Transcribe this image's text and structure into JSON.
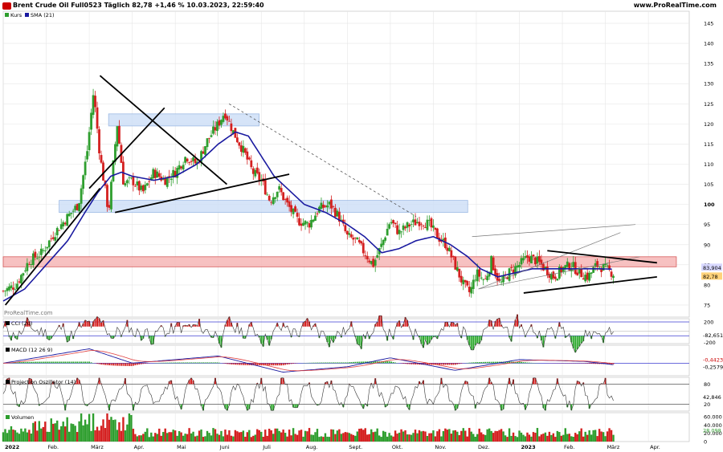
{
  "header": {
    "title": "Brent Crude Oil Full0523 Täglich 82,78 +1,46 % 10.03.2023, 22:59:40",
    "brand": "www.ProRealTime.com"
  },
  "colors": {
    "candle_up": "#2e9e2e",
    "candle_down": "#d42020",
    "sma": "#1a1aa0",
    "resistance_zone": "#f6b7b7",
    "support_zone": "#cfe0f7",
    "grid": "#e6e6e6",
    "osc_pos": "#2eaa2e",
    "osc_neg": "#d42020",
    "ref_line": "#3c3cd0"
  },
  "chart_data": [
    {
      "type": "candlestick",
      "title": "Brent Crude Oil Full0523 Täglich",
      "legend": [
        {
          "name": "Kurs",
          "color": "#2e9e2e"
        },
        {
          "name": "SMA (21)",
          "color": "#1a1aa0"
        }
      ],
      "ylim": [
        72,
        148
      ],
      "y_ticks": [
        75,
        80,
        85,
        90,
        95,
        100,
        105,
        110,
        115,
        120,
        125,
        130,
        135,
        140,
        145
      ],
      "last_price": "82,78",
      "sma_value": "83,904",
      "x_tick_labels": [
        "2022",
        "Feb.",
        "März",
        "Apr.",
        "Mai",
        "Juni",
        "Juli",
        "Aug.",
        "Sept.",
        "Okt.",
        "Nov.",
        "Dez.",
        "2023",
        "Feb.",
        "März",
        "Apr."
      ],
      "x_tick_months": [
        0,
        1,
        2,
        3,
        4,
        5,
        6,
        7,
        8,
        9,
        10,
        11,
        12,
        13,
        14,
        15
      ],
      "x_range_months": [
        0,
        15.95
      ],
      "close_keypoints": [
        [
          0.0,
          78.5
        ],
        [
          0.3,
          80
        ],
        [
          0.6,
          86
        ],
        [
          0.9,
          88
        ],
        [
          1.2,
          93
        ],
        [
          1.5,
          97
        ],
        [
          1.75,
          100
        ],
        [
          1.95,
          113
        ],
        [
          2.1,
          128
        ],
        [
          2.25,
          112
        ],
        [
          2.45,
          98
        ],
        [
          2.65,
          120
        ],
        [
          2.8,
          105
        ],
        [
          3.0,
          106
        ],
        [
          3.25,
          103
        ],
        [
          3.5,
          108
        ],
        [
          3.75,
          106
        ],
        [
          4.0,
          108
        ],
        [
          4.25,
          112
        ],
        [
          4.5,
          110
        ],
        [
          4.75,
          116
        ],
        [
          5.0,
          120
        ],
        [
          5.15,
          123
        ],
        [
          5.35,
          118
        ],
        [
          5.6,
          113
        ],
        [
          5.8,
          108
        ],
        [
          6.0,
          106
        ],
        [
          6.2,
          101
        ],
        [
          6.4,
          104
        ],
        [
          6.6,
          100
        ],
        [
          6.85,
          96
        ],
        [
          7.1,
          95
        ],
        [
          7.35,
          99
        ],
        [
          7.6,
          100
        ],
        [
          7.8,
          97
        ],
        [
          8.0,
          92
        ],
        [
          8.2,
          91
        ],
        [
          8.4,
          88
        ],
        [
          8.6,
          85
        ],
        [
          8.8,
          90
        ],
        [
          9.0,
          96
        ],
        [
          9.2,
          93
        ],
        [
          9.45,
          95
        ],
        [
          9.7,
          96
        ],
        [
          9.9,
          95
        ],
        [
          10.1,
          92
        ],
        [
          10.3,
          90
        ],
        [
          10.5,
          85
        ],
        [
          10.7,
          80
        ],
        [
          10.85,
          78
        ],
        [
          11.0,
          83
        ],
        [
          11.2,
          81
        ],
        [
          11.35,
          86
        ],
        [
          11.55,
          80
        ],
        [
          11.75,
          83
        ],
        [
          12.0,
          85
        ],
        [
          12.2,
          87
        ],
        [
          12.4,
          86
        ],
        [
          12.6,
          84
        ],
        [
          12.8,
          82
        ],
        [
          13.0,
          84
        ],
        [
          13.2,
          85
        ],
        [
          13.4,
          83
        ],
        [
          13.6,
          82
        ],
        [
          13.8,
          85
        ],
        [
          14.0,
          84
        ],
        [
          14.2,
          82.78
        ]
      ],
      "sma_keypoints": [
        [
          0.0,
          76
        ],
        [
          0.5,
          79
        ],
        [
          1.0,
          85
        ],
        [
          1.5,
          91
        ],
        [
          1.9,
          98
        ],
        [
          2.2,
          103
        ],
        [
          2.5,
          107
        ],
        [
          2.75,
          108
        ],
        [
          3.0,
          107
        ],
        [
          3.5,
          106
        ],
        [
          4.0,
          107
        ],
        [
          4.5,
          110
        ],
        [
          5.0,
          115
        ],
        [
          5.4,
          118
        ],
        [
          5.7,
          117
        ],
        [
          6.0,
          112
        ],
        [
          6.3,
          107
        ],
        [
          6.7,
          103
        ],
        [
          7.0,
          100
        ],
        [
          7.5,
          98
        ],
        [
          8.0,
          95
        ],
        [
          8.4,
          92
        ],
        [
          8.8,
          88
        ],
        [
          9.2,
          89
        ],
        [
          9.6,
          91
        ],
        [
          10.0,
          92
        ],
        [
          10.4,
          90
        ],
        [
          10.8,
          87
        ],
        [
          11.1,
          84
        ],
        [
          11.5,
          82
        ],
        [
          11.9,
          83
        ],
        [
          12.3,
          84
        ],
        [
          12.7,
          84
        ],
        [
          13.1,
          84
        ],
        [
          13.5,
          84
        ],
        [
          13.9,
          84
        ],
        [
          14.2,
          83.904
        ]
      ],
      "support_zone": [
        98,
        101
      ],
      "resistance_zone": [
        84.5,
        87
      ],
      "upper_zone": [
        119.5,
        122.5
      ]
    },
    {
      "type": "oscillator",
      "title": "CCI (20)",
      "ylim": [
        -270,
        270
      ],
      "ref_lines": [
        200,
        -100
      ],
      "tick_labels": [
        "200",
        "-200"
      ],
      "last_value": "-82,651"
    },
    {
      "type": "macd",
      "title": "MACD (12 26 9)",
      "ylim": [
        -3.5,
        5
      ],
      "last_values": [
        "-0,4423",
        "-0,2579"
      ]
    },
    {
      "type": "oscillator",
      "title": "Projection Oszillator (14)",
      "ylim": [
        0,
        100
      ],
      "ref_lines": [
        80,
        20
      ],
      "tick_labels": [
        "80",
        "20"
      ],
      "last_value": "42,846"
    },
    {
      "type": "bar",
      "title": "Volumen",
      "ylim": [
        0,
        70000
      ],
      "tick_labels": [
        "60.000",
        "40.000",
        "20.000",
        "0"
      ],
      "last_value": "28.098"
    }
  ]
}
